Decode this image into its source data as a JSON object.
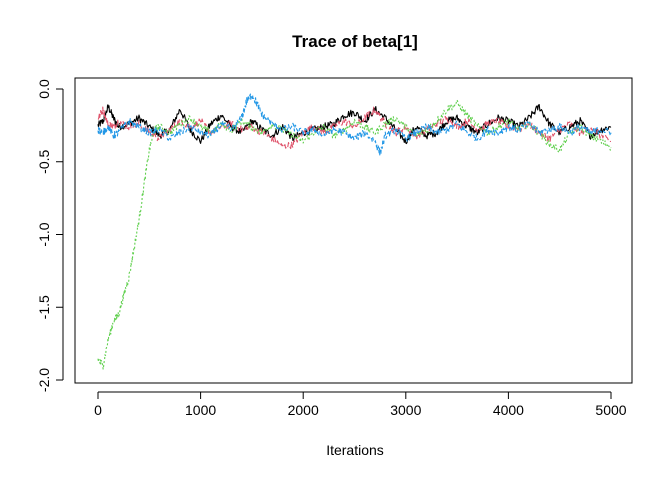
{
  "chart_data": {
    "type": "line",
    "title": "Trace of beta[1]",
    "xlabel": "Iterations",
    "ylabel": "",
    "xlim": [
      0,
      5000
    ],
    "ylim": [
      -2.0,
      0.0
    ],
    "xticks": [
      0,
      1000,
      2000,
      3000,
      4000,
      5000
    ],
    "yticks": [
      0.0,
      -0.5,
      -1.0,
      -1.5,
      -2.0
    ],
    "xtick_labels": [
      "0",
      "1000",
      "2000",
      "3000",
      "4000",
      "5000"
    ],
    "ytick_labels": [
      "0.0",
      "-0.5",
      "-1.0",
      "-1.5",
      "-2.0"
    ],
    "grid": false,
    "legend": "none",
    "series": [
      {
        "color": "#000000",
        "dash": "none",
        "x": [
          0,
          50,
          100,
          150,
          200,
          300,
          400,
          500,
          600,
          700,
          800,
          900,
          1000,
          1100,
          1200,
          1300,
          1400,
          1500,
          1600,
          1700,
          1800,
          1900,
          2000,
          2100,
          2200,
          2300,
          2400,
          2500,
          2600,
          2700,
          2800,
          2900,
          3000,
          3100,
          3200,
          3300,
          3400,
          3500,
          3600,
          3700,
          3800,
          3900,
          4000,
          4100,
          4200,
          4300,
          4400,
          4500,
          4600,
          4700,
          4800,
          4900,
          5000
        ],
        "values": [
          -0.25,
          -0.22,
          -0.12,
          -0.2,
          -0.26,
          -0.24,
          -0.2,
          -0.26,
          -0.32,
          -0.28,
          -0.14,
          -0.28,
          -0.36,
          -0.24,
          -0.18,
          -0.26,
          -0.3,
          -0.22,
          -0.28,
          -0.32,
          -0.26,
          -0.34,
          -0.3,
          -0.28,
          -0.26,
          -0.24,
          -0.18,
          -0.16,
          -0.22,
          -0.14,
          -0.2,
          -0.28,
          -0.36,
          -0.26,
          -0.32,
          -0.3,
          -0.22,
          -0.2,
          -0.26,
          -0.3,
          -0.24,
          -0.2,
          -0.22,
          -0.26,
          -0.2,
          -0.12,
          -0.24,
          -0.3,
          -0.26,
          -0.22,
          -0.32,
          -0.28,
          -0.26
        ]
      },
      {
        "color": "#df536b",
        "dash": "6,3",
        "x": [
          0,
          50,
          100,
          150,
          200,
          300,
          400,
          500,
          600,
          700,
          800,
          900,
          1000,
          1100,
          1200,
          1300,
          1400,
          1500,
          1600,
          1700,
          1800,
          1900,
          2000,
          2100,
          2200,
          2300,
          2400,
          2500,
          2600,
          2700,
          2800,
          2900,
          3000,
          3100,
          3200,
          3300,
          3400,
          3500,
          3600,
          3700,
          3800,
          3900,
          4000,
          4100,
          4200,
          4300,
          4400,
          4500,
          4600,
          4700,
          4800,
          4900,
          5000
        ],
        "values": [
          -0.2,
          -0.14,
          -0.24,
          -0.26,
          -0.22,
          -0.26,
          -0.24,
          -0.3,
          -0.34,
          -0.28,
          -0.22,
          -0.26,
          -0.22,
          -0.3,
          -0.26,
          -0.24,
          -0.28,
          -0.26,
          -0.3,
          -0.34,
          -0.4,
          -0.38,
          -0.3,
          -0.26,
          -0.3,
          -0.26,
          -0.22,
          -0.26,
          -0.2,
          -0.14,
          -0.24,
          -0.3,
          -0.26,
          -0.32,
          -0.28,
          -0.24,
          -0.2,
          -0.26,
          -0.22,
          -0.28,
          -0.24,
          -0.22,
          -0.26,
          -0.28,
          -0.24,
          -0.3,
          -0.34,
          -0.28,
          -0.24,
          -0.3,
          -0.26,
          -0.32,
          -0.36
        ]
      },
      {
        "color": "#61d04f",
        "dash": "2,2",
        "x": [
          0,
          50,
          100,
          150,
          200,
          250,
          300,
          350,
          400,
          450,
          500,
          550,
          600,
          700,
          800,
          900,
          1000,
          1100,
          1200,
          1300,
          1400,
          1500,
          1600,
          1700,
          1800,
          1900,
          2000,
          2100,
          2200,
          2300,
          2400,
          2500,
          2600,
          2700,
          2800,
          2900,
          3000,
          3100,
          3200,
          3300,
          3400,
          3500,
          3600,
          3700,
          3800,
          3900,
          4000,
          4100,
          4200,
          4300,
          4400,
          4500,
          4600,
          4700,
          4800,
          4900,
          5000
        ],
        "values": [
          -1.86,
          -1.9,
          -1.72,
          -1.6,
          -1.55,
          -1.42,
          -1.3,
          -1.1,
          -0.9,
          -0.65,
          -0.42,
          -0.28,
          -0.26,
          -0.3,
          -0.24,
          -0.2,
          -0.26,
          -0.3,
          -0.24,
          -0.28,
          -0.22,
          -0.26,
          -0.3,
          -0.24,
          -0.28,
          -0.32,
          -0.36,
          -0.3,
          -0.26,
          -0.32,
          -0.28,
          -0.22,
          -0.26,
          -0.3,
          -0.24,
          -0.2,
          -0.26,
          -0.32,
          -0.28,
          -0.22,
          -0.14,
          -0.1,
          -0.18,
          -0.26,
          -0.3,
          -0.26,
          -0.22,
          -0.28,
          -0.24,
          -0.3,
          -0.38,
          -0.42,
          -0.3,
          -0.26,
          -0.32,
          -0.36,
          -0.4
        ]
      },
      {
        "color": "#2297e6",
        "dash": "4,2",
        "x": [
          0,
          50,
          100,
          150,
          200,
          300,
          400,
          500,
          600,
          700,
          800,
          900,
          1000,
          1100,
          1200,
          1300,
          1400,
          1450,
          1500,
          1550,
          1600,
          1700,
          1800,
          1900,
          2000,
          2100,
          2200,
          2300,
          2400,
          2500,
          2600,
          2700,
          2750,
          2800,
          2900,
          3000,
          3100,
          3200,
          3300,
          3400,
          3500,
          3600,
          3700,
          3800,
          3900,
          4000,
          4100,
          4200,
          4300,
          4400,
          4500,
          4600,
          4700,
          4800,
          4900,
          5000
        ],
        "values": [
          -0.28,
          -0.3,
          -0.26,
          -0.32,
          -0.3,
          -0.22,
          -0.26,
          -0.3,
          -0.28,
          -0.34,
          -0.3,
          -0.26,
          -0.3,
          -0.32,
          -0.24,
          -0.28,
          -0.2,
          -0.08,
          -0.04,
          -0.1,
          -0.18,
          -0.24,
          -0.28,
          -0.26,
          -0.3,
          -0.28,
          -0.32,
          -0.28,
          -0.3,
          -0.34,
          -0.3,
          -0.36,
          -0.44,
          -0.32,
          -0.28,
          -0.34,
          -0.3,
          -0.26,
          -0.3,
          -0.28,
          -0.24,
          -0.3,
          -0.34,
          -0.28,
          -0.3,
          -0.26,
          -0.28,
          -0.24,
          -0.3,
          -0.28,
          -0.26,
          -0.3,
          -0.26,
          -0.3,
          -0.28,
          -0.3
        ]
      }
    ]
  }
}
